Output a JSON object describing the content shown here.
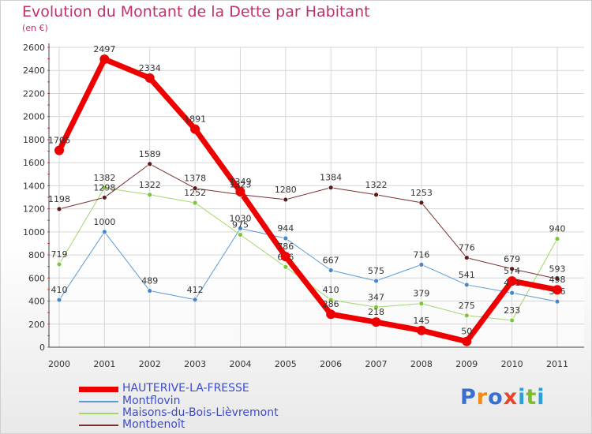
{
  "title": "Evolution du Montant de la Dette par Habitant",
  "subtitle": "(en €)",
  "logo": {
    "text": "Proxiti",
    "letters": [
      "P",
      "r",
      "o",
      "x",
      "i",
      "t",
      "i"
    ],
    "colors": [
      "#3a6fd0",
      "#f08a1c",
      "#3a6fd0",
      "#e8452c",
      "#2aa0d8",
      "#7bbd2a",
      "#2aa0d8"
    ]
  },
  "chart_data": {
    "type": "line",
    "title": "Evolution du Montant de la Dette par Habitant",
    "xlabel": "",
    "ylabel": "(en €)",
    "x": [
      "2000",
      "2001",
      "2002",
      "2003",
      "2004",
      "2005",
      "2006",
      "2007",
      "2008",
      "2009",
      "2010",
      "2011"
    ],
    "ylim": [
      0,
      2600
    ],
    "yticks": [
      0,
      200,
      400,
      600,
      800,
      1000,
      1200,
      1400,
      1600,
      1800,
      2000,
      2200,
      2400,
      2600
    ],
    "grid": true,
    "legend": "bottom-left",
    "series": [
      {
        "name": "Montflovin",
        "color": "#5b9bd5",
        "marker": "#4a86c8",
        "width": 1,
        "values": [
          410,
          1000,
          489,
          412,
          1030,
          944,
          667,
          575,
          716,
          541,
          471,
          396
        ]
      },
      {
        "name": "Maisons-du-Bois-Lièvremont",
        "color": "#a2d86a",
        "marker": "#7dc63c",
        "width": 1,
        "values": [
          719,
          1382,
          1322,
          1252,
          975,
          696,
          410,
          347,
          379,
          275,
          233,
          940
        ]
      },
      {
        "name": "Montbenoît",
        "color": "#7a3030",
        "marker": "#5a1a1a",
        "width": 1,
        "values": [
          1198,
          1298,
          1589,
          1378,
          1323,
          1280,
          1384,
          1322,
          1253,
          776,
          679,
          593
        ]
      },
      {
        "name": "HAUTERIVE-LA-FRESSE",
        "color": "#ee0000",
        "marker": "#ee0000",
        "width": 7,
        "values": [
          1706,
          2497,
          2334,
          1891,
          1349,
          786,
          286,
          218,
          145,
          50,
          574,
          498
        ]
      }
    ],
    "legend_order": [
      "HAUTERIVE-LA-FRESSE",
      "Montflovin",
      "Maisons-du-Bois-Lièvremont",
      "Montbenoît"
    ]
  }
}
